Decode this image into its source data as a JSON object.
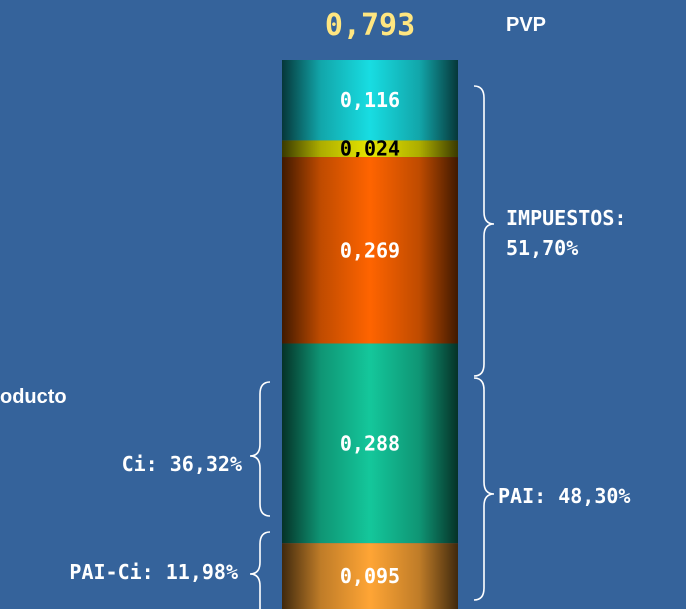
{
  "chart_data": {
    "type": "bar",
    "total_label": "0,793",
    "total_caption": "PVP",
    "segments": [
      {
        "label": "0,116",
        "value": 0.116,
        "color": "#18dde2",
        "text_color": "#ffffff"
      },
      {
        "label": "0,024",
        "value": 0.024,
        "color": "#e6e600",
        "text_color": "#000000"
      },
      {
        "label": "0,269",
        "value": 0.269,
        "color": "#ff6400",
        "text_color": "#ffffff"
      },
      {
        "label": "0,288",
        "value": 0.288,
        "color": "#14c79b",
        "text_color": "#ffffff"
      },
      {
        "label": "0,095",
        "value": 0.095,
        "color": "#ffa535",
        "text_color": "#ffffff"
      }
    ],
    "annotations": {
      "impuestos_line1": "IMPUESTOS:",
      "impuestos_line2": "51,70%",
      "pai": "PAI: 48,30%",
      "ci": "Ci: 36,32%",
      "pai_ci": "PAI-Ci: 11,98%",
      "producto": "oducto"
    }
  }
}
